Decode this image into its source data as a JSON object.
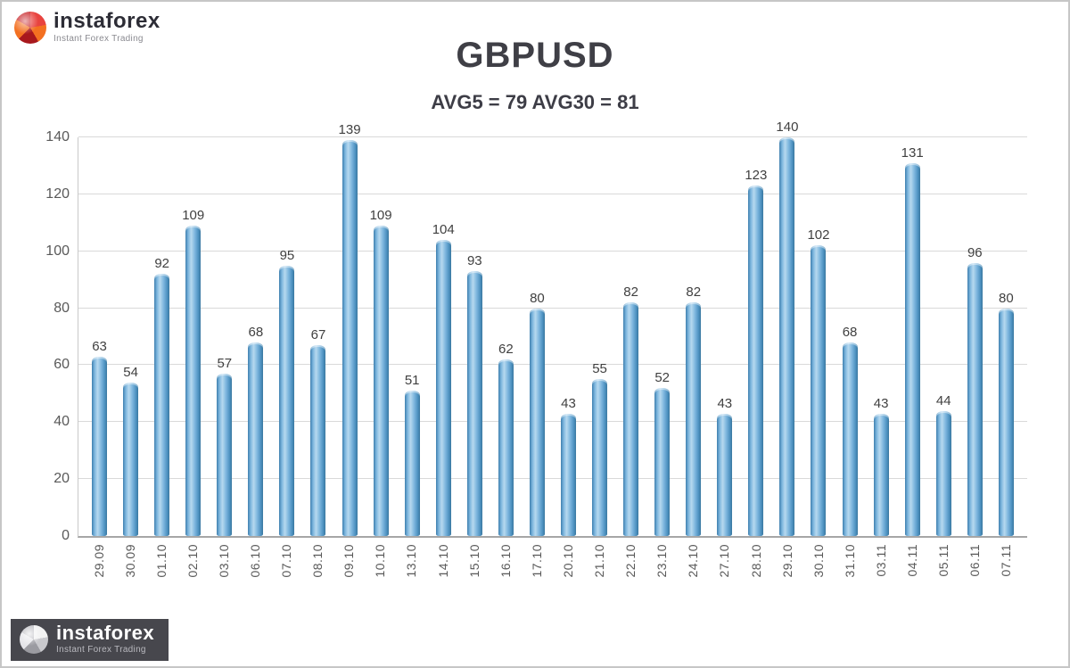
{
  "logo": {
    "name": "instaforex",
    "tagline": "Instant Forex Trading"
  },
  "chart_data": {
    "type": "bar",
    "title": "GBPUSD",
    "subtitle": "AVG5 = 79 AVG30 = 81",
    "categories": [
      "29.09",
      "30.09",
      "01.10",
      "02.10",
      "03.10",
      "06.10",
      "07.10",
      "08.10",
      "09.10",
      "10.10",
      "13.10",
      "14.10",
      "15.10",
      "16.10",
      "17.10",
      "20.10",
      "21.10",
      "22.10",
      "23.10",
      "24.10",
      "27.10",
      "28.10",
      "29.10",
      "30.10",
      "31.10",
      "03.11",
      "04.11",
      "05.11",
      "06.11",
      "07.11"
    ],
    "values": [
      63,
      54,
      92,
      109,
      57,
      68,
      95,
      67,
      139,
      109,
      51,
      104,
      93,
      62,
      80,
      43,
      55,
      82,
      52,
      82,
      43,
      123,
      140,
      102,
      68,
      43,
      131,
      44,
      96,
      80
    ],
    "xlabel": "",
    "ylabel": "",
    "ylim": [
      0,
      140
    ],
    "yticks": [
      0,
      20,
      40,
      60,
      80,
      100,
      120,
      140
    ],
    "grid": true,
    "legend": false,
    "bar_fill": "#8fc3e8",
    "bar_edge": "#3a789f",
    "label_color": "#404040",
    "axis_color": "#a6a6a6"
  }
}
